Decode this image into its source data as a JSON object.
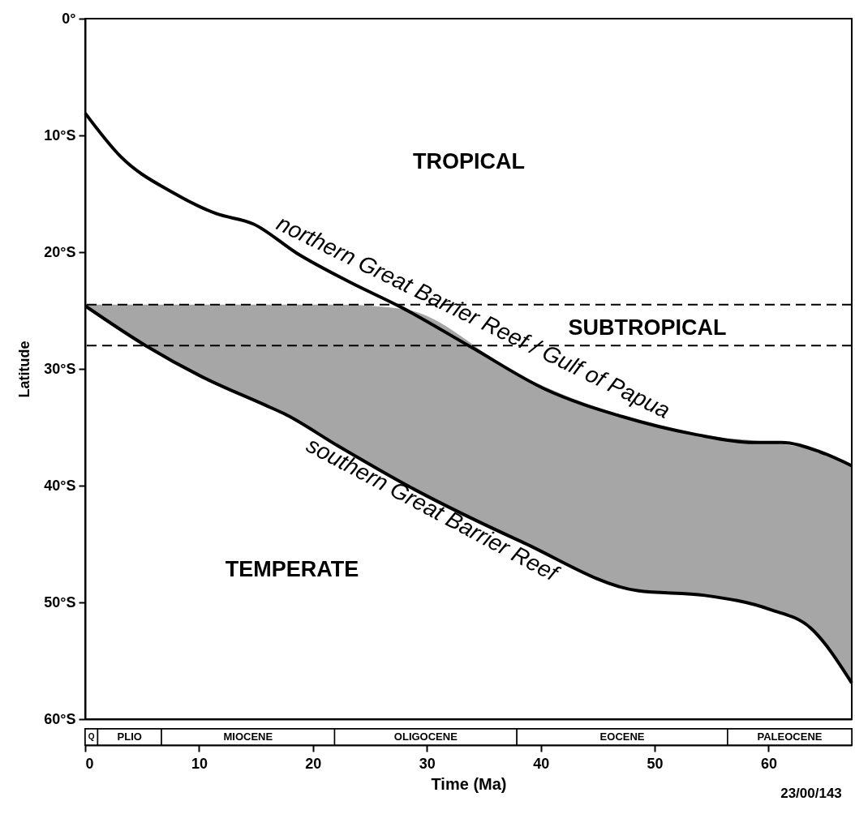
{
  "chart_data": [
    {
      "type": "line",
      "ylabel": "Latitude",
      "xlim": [
        0,
        67.3
      ],
      "ylim": [
        60,
        0
      ],
      "tick_labels": "y",
      "yticks": [
        {
          "value": 0,
          "label": "0°"
        },
        {
          "value": 10,
          "label": "10°S"
        },
        {
          "value": 20,
          "label": "20°S"
        },
        {
          "value": 30,
          "label": "30°S"
        },
        {
          "value": 40,
          "label": "40°S"
        },
        {
          "value": 50,
          "label": "50°S"
        },
        {
          "value": 60,
          "label": "60°S"
        }
      ],
      "series": [
        {
          "name": "northern Great Barrier Reef / Gulf of Papua",
          "color": "#000000",
          "x": [
            0,
            3.1,
            7.7,
            11.5,
            14.8,
            18.6,
            23.1,
            27.9,
            34.0,
            40.3,
            47.2,
            53.5,
            58.6,
            61.1,
            64.5,
            67.3
          ],
          "values": [
            8.1,
            11.8,
            14.9,
            16.7,
            17.6,
            20.1,
            22.5,
            24.8,
            28.2,
            31.7,
            34.1,
            35.6,
            36.3,
            36.3,
            37.1,
            38.3
          ]
        },
        {
          "name": "southern Great Barrier Reef",
          "color": "#000000",
          "x": [
            0,
            5.3,
            10.1,
            15.8,
            17.4,
            22.2,
            28.1,
            38.3,
            48.5,
            54.4,
            60.1,
            63.7,
            67.3
          ],
          "values": [
            24.6,
            28.0,
            30.6,
            33.1,
            33.8,
            36.6,
            39.9,
            44.8,
            49.0,
            49.4,
            50.6,
            52.2,
            56.9
          ],
          "lower": [
            24.6,
            28.0,
            30.6,
            33.1,
            33.8,
            36.6,
            39.9,
            44.8,
            49.0,
            49.4,
            50.6,
            52.2,
            56.9
          ],
          "upper": [
            24.5,
            24.5,
            24.5,
            24.5,
            24.5,
            24.5,
            24.9,
            30.6,
            34.4,
            35.7,
            36.3,
            36.9,
            38.3
          ]
        }
      ],
      "ref_lines": [
        {
          "axis": "y",
          "value": 24.5,
          "line_style": "dashed",
          "color": "#000000"
        },
        {
          "axis": "y",
          "value": 28,
          "line_style": "dashed",
          "color": "#000000"
        }
      ],
      "annotations": [
        "TROPICAL",
        "SUBTROPICAL",
        "TEMPERATE"
      ]
    },
    {
      "type": "bar",
      "orientation": "horizontal",
      "stacked": true,
      "categories": [
        null
      ],
      "xlabel": "Time (Ma)",
      "xlim": [
        0,
        67.3
      ],
      "xticks": [
        0,
        10,
        20,
        30,
        40,
        50,
        60
      ],
      "tick_labels": "x",
      "series": [
        {
          "name": "Q",
          "color": "#ffffff",
          "values": [
            1.1
          ]
        },
        {
          "name": "PLIO",
          "color": "#ffffff",
          "values": [
            5.6
          ]
        },
        {
          "name": "MIOCENE",
          "color": "#ffffff",
          "values": [
            15.2
          ]
        },
        {
          "name": "OLIGOCENE",
          "color": "#ffffff",
          "values": [
            16.0
          ]
        },
        {
          "name": "EOCENE",
          "color": "#ffffff",
          "values": [
            18.5
          ]
        },
        {
          "name": "PALEOCENE",
          "color": "#ffffff",
          "values": [
            10.9
          ]
        }
      ],
      "annotations": [
        "23/00/143"
      ]
    }
  ]
}
